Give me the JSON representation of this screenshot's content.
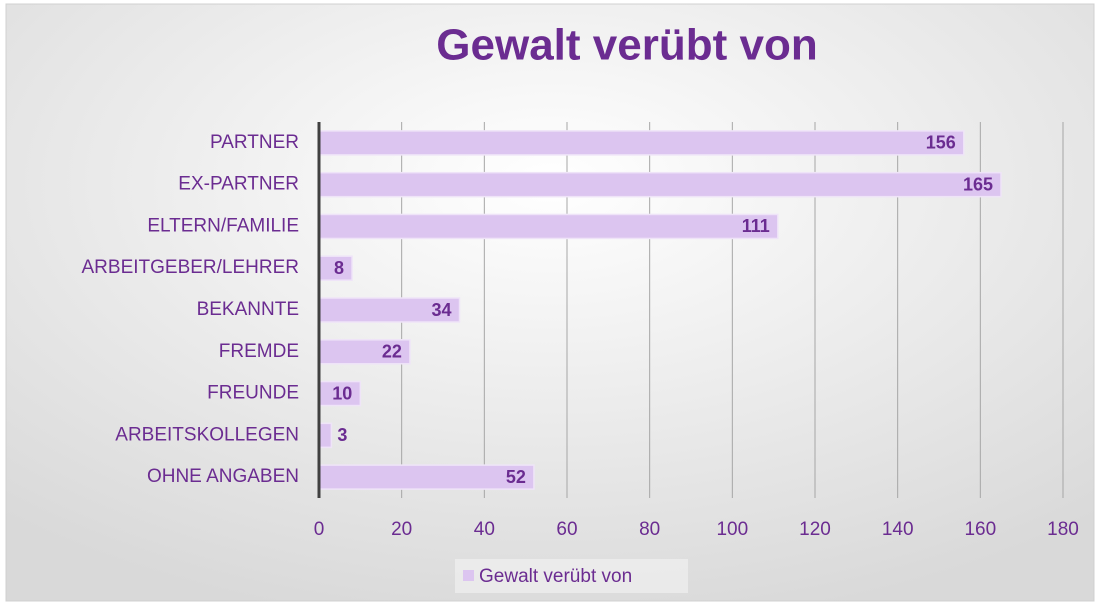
{
  "chart_data": {
    "type": "bar",
    "orientation": "horizontal",
    "title": "Gewalt verübt von",
    "categories": [
      "PARTNER",
      "EX-PARTNER",
      "ELTERN/FAMILIE",
      "ARBEITGEBER/LEHRER",
      "BEKANNTE",
      "FREMDE",
      "FREUNDE",
      "ARBEITSKOLLEGEN",
      "OHNE ANGABEN"
    ],
    "series": [
      {
        "name": "Gewalt verübt von",
        "color": "#dcc5f0",
        "values": [
          156,
          165,
          111,
          8,
          34,
          22,
          10,
          3,
          52
        ]
      }
    ],
    "xlim": [
      0,
      180
    ],
    "xticks": [
      0,
      20,
      40,
      60,
      80,
      100,
      120,
      140,
      160,
      180
    ],
    "grid": true,
    "legend": "bottom"
  }
}
